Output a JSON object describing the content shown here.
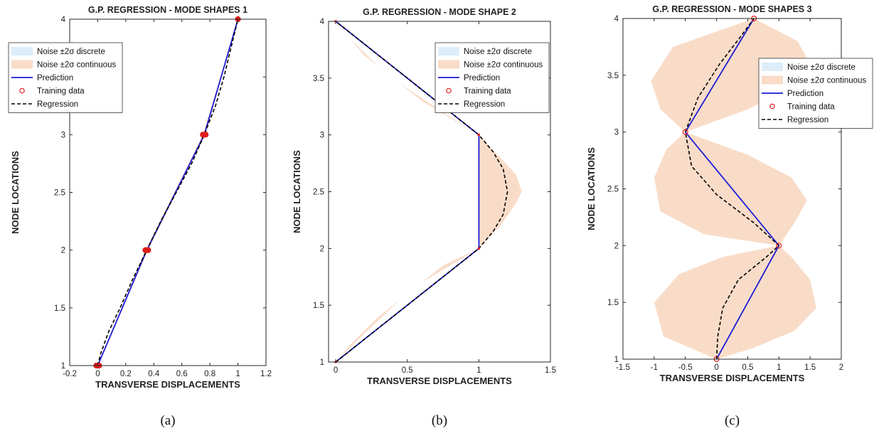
{
  "colors": {
    "band_discrete": "#ddeefa",
    "band_continuous": "#f9dcc8",
    "prediction": "#1c1cd6",
    "training": "#e01c1c",
    "regression": "#000000"
  },
  "chart_data": [
    {
      "type": "line",
      "caption": "(a)",
      "title": "G.P. REGRESSION - MODE SHAPES 1",
      "xlabel": "TRANSVERSE DISPLACEMENTS",
      "ylabel": "NODE LOCATIONS",
      "xlim": [
        -0.2,
        1.2
      ],
      "ylim": [
        1,
        4
      ],
      "xticks": [
        -0.2,
        0,
        0.2,
        0.4,
        0.6,
        0.8,
        1,
        1.2
      ],
      "xtick_labels": [
        "-0.2",
        "0",
        "0.2",
        "0.4",
        "0.6",
        "0.8",
        "1",
        "1.2"
      ],
      "yticks": [
        1,
        1.5,
        2,
        2.5,
        3,
        3.5,
        4
      ],
      "ytick_labels": [
        "1",
        "1.5",
        "2",
        "2.5",
        "3",
        "3.5",
        "4"
      ],
      "legend_position": "top-left",
      "legend": [
        "Noise ±2σ discrete",
        "Noise ±2σ continuous",
        "Prediction",
        "Training data",
        "Regression"
      ],
      "training_marker": "dot",
      "band_continuous": {
        "upper": [
          [
            0.0,
            1.0
          ],
          [
            0.36,
            2.0
          ],
          [
            0.77,
            3.0
          ],
          [
            1.0,
            4.0
          ]
        ],
        "lower": [
          [
            0.0,
            1.0
          ],
          [
            0.34,
            2.0
          ],
          [
            0.75,
            3.0
          ],
          [
            1.0,
            4.0
          ]
        ]
      },
      "prediction": [
        [
          0.0,
          1.0
        ],
        [
          0.35,
          2.0
        ],
        [
          0.76,
          3.0
        ],
        [
          1.0,
          4.0
        ]
      ],
      "training": [
        [
          -0.01,
          1.0
        ],
        [
          0.0,
          1.0
        ],
        [
          0.01,
          1.0
        ],
        [
          0.34,
          2.0
        ],
        [
          0.35,
          2.0
        ],
        [
          0.36,
          2.0
        ],
        [
          0.75,
          3.0
        ],
        [
          0.76,
          3.0
        ],
        [
          0.77,
          3.0
        ],
        [
          1.0,
          4.0
        ]
      ],
      "regression": [
        [
          0.0,
          1.0
        ],
        [
          0.02,
          1.1
        ],
        [
          0.08,
          1.3
        ],
        [
          0.16,
          1.5
        ],
        [
          0.25,
          1.75
        ],
        [
          0.35,
          2.0
        ],
        [
          0.45,
          2.25
        ],
        [
          0.56,
          2.5
        ],
        [
          0.67,
          2.75
        ],
        [
          0.76,
          3.0
        ],
        [
          0.84,
          3.25
        ],
        [
          0.9,
          3.5
        ],
        [
          0.95,
          3.75
        ],
        [
          1.0,
          4.0
        ]
      ]
    },
    {
      "type": "line",
      "caption": "(b)",
      "title": "G.P. REGRESSION - MODE SHAPE 2",
      "xlabel": "TRANSVERSE DISPLACEMENTS",
      "ylabel": "NODE LOCATIONS",
      "xlim": [
        -0.05,
        1.5
      ],
      "ylim": [
        1,
        4
      ],
      "xticks": [
        0,
        0.5,
        1,
        1.5
      ],
      "xtick_labels": [
        "0",
        "0.5",
        "1",
        "1.5"
      ],
      "yticks": [
        1,
        1.5,
        2,
        2.5,
        3,
        3.5,
        4
      ],
      "ytick_labels": [
        "1",
        "1.5",
        "2",
        "2.5",
        "3",
        "3.5",
        "4"
      ],
      "legend_position": "top-right",
      "legend": [
        "Noise ±2σ discrete",
        "Noise ±2σ continuous",
        "Prediction",
        "Training data",
        "Regression"
      ],
      "training_marker": "small-dot",
      "band_continuous": {
        "upper": [
          [
            0.0,
            1.0
          ],
          [
            0.2,
            1.25
          ],
          [
            0.45,
            1.55
          ],
          [
            0.75,
            1.85
          ],
          [
            1.0,
            2.0
          ],
          [
            1.15,
            2.2
          ],
          [
            1.26,
            2.4
          ],
          [
            1.3,
            2.5
          ],
          [
            1.26,
            2.65
          ],
          [
            1.15,
            2.8
          ],
          [
            1.0,
            3.0
          ],
          [
            0.75,
            3.2
          ],
          [
            0.45,
            3.45
          ],
          [
            0.2,
            3.7
          ],
          [
            0.0,
            4.0
          ]
        ],
        "lower": [
          [
            0.0,
            1.0
          ],
          [
            0.1,
            1.15
          ],
          [
            0.3,
            1.4
          ],
          [
            0.6,
            1.7
          ],
          [
            1.0,
            2.0
          ],
          [
            1.0,
            3.0
          ],
          [
            0.6,
            3.3
          ],
          [
            0.3,
            3.6
          ],
          [
            0.1,
            3.85
          ],
          [
            0.0,
            4.0
          ]
        ]
      },
      "prediction": [
        [
          0.0,
          1.0
        ],
        [
          1.0,
          2.0
        ],
        [
          1.0,
          3.0
        ],
        [
          0.0,
          4.0
        ]
      ],
      "training": [
        [
          0.0,
          1.0
        ],
        [
          1.0,
          2.0
        ],
        [
          1.0,
          3.0
        ],
        [
          0.0,
          4.0
        ]
      ],
      "regression": [
        [
          0.0,
          1.0
        ],
        [
          0.25,
          1.25
        ],
        [
          0.5,
          1.5
        ],
        [
          0.75,
          1.75
        ],
        [
          1.0,
          2.0
        ],
        [
          1.1,
          2.15
        ],
        [
          1.17,
          2.3
        ],
        [
          1.2,
          2.5
        ],
        [
          1.17,
          2.7
        ],
        [
          1.1,
          2.85
        ],
        [
          1.0,
          3.0
        ],
        [
          0.75,
          3.25
        ],
        [
          0.5,
          3.5
        ],
        [
          0.25,
          3.75
        ],
        [
          0.0,
          4.0
        ]
      ]
    },
    {
      "type": "line",
      "caption": "(c)",
      "title": "G.P. REGRESSION - MODE SHAPES 3",
      "xlabel": "TRANSVERSE DISPLACEMENTS",
      "ylabel": "NODE LOCATIONS",
      "xlim": [
        -1.5,
        2
      ],
      "ylim": [
        1,
        4
      ],
      "xticks": [
        -1.5,
        -1,
        -0.5,
        0,
        0.5,
        1,
        1.5,
        2
      ],
      "xtick_labels": [
        "-1.5",
        "-1",
        "-0.5",
        "0",
        "0.5",
        "1",
        "1.5",
        "2"
      ],
      "yticks": [
        1,
        1.5,
        2,
        2.5,
        3,
        3.5,
        4
      ],
      "ytick_labels": [
        "1",
        "1.5",
        "2",
        "2.5",
        "3",
        "3.5",
        "4"
      ],
      "legend_position": "top-right",
      "legend": [
        "Noise ±2σ discrete",
        "Noise ±2σ continuous",
        "Prediction",
        "Training data",
        "Regression"
      ],
      "training_marker": "circle",
      "band_continuous": {
        "upper": [
          [
            0.0,
            1.0
          ],
          [
            0.6,
            1.1
          ],
          [
            1.25,
            1.25
          ],
          [
            1.6,
            1.45
          ],
          [
            1.5,
            1.7
          ],
          [
            1.2,
            1.9
          ],
          [
            1.0,
            2.0
          ],
          [
            1.25,
            2.2
          ],
          [
            1.45,
            2.4
          ],
          [
            1.2,
            2.6
          ],
          [
            0.5,
            2.8
          ],
          [
            -0.5,
            3.0
          ],
          [
            0.5,
            3.2
          ],
          [
            1.25,
            3.4
          ],
          [
            1.5,
            3.6
          ],
          [
            1.3,
            3.8
          ],
          [
            0.6,
            4.0
          ]
        ],
        "lower": [
          [
            0.0,
            1.0
          ],
          [
            -0.85,
            1.2
          ],
          [
            -1.0,
            1.5
          ],
          [
            -0.6,
            1.75
          ],
          [
            0.1,
            1.9
          ],
          [
            1.0,
            2.0
          ],
          [
            -0.2,
            2.1
          ],
          [
            -0.9,
            2.3
          ],
          [
            -1.0,
            2.6
          ],
          [
            -0.8,
            2.85
          ],
          [
            -0.5,
            3.0
          ],
          [
            -0.9,
            3.2
          ],
          [
            -1.05,
            3.45
          ],
          [
            -0.7,
            3.75
          ],
          [
            0.6,
            4.0
          ]
        ]
      },
      "prediction": [
        [
          0.0,
          1.0
        ],
        [
          1.0,
          2.0
        ],
        [
          -0.5,
          3.0
        ],
        [
          0.6,
          4.0
        ]
      ],
      "training": [
        [
          0.0,
          1.0
        ],
        [
          1.0,
          2.0
        ],
        [
          -0.5,
          3.0
        ],
        [
          0.6,
          4.0
        ]
      ],
      "regression": [
        [
          0.0,
          1.0
        ],
        [
          0.02,
          1.2
        ],
        [
          0.1,
          1.45
        ],
        [
          0.35,
          1.7
        ],
        [
          0.8,
          1.9
        ],
        [
          1.0,
          2.0
        ],
        [
          0.6,
          2.2
        ],
        [
          0.0,
          2.45
        ],
        [
          -0.4,
          2.7
        ],
        [
          -0.5,
          3.0
        ],
        [
          -0.3,
          3.3
        ],
        [
          0.05,
          3.6
        ],
        [
          0.4,
          3.85
        ],
        [
          0.6,
          4.0
        ]
      ]
    }
  ]
}
